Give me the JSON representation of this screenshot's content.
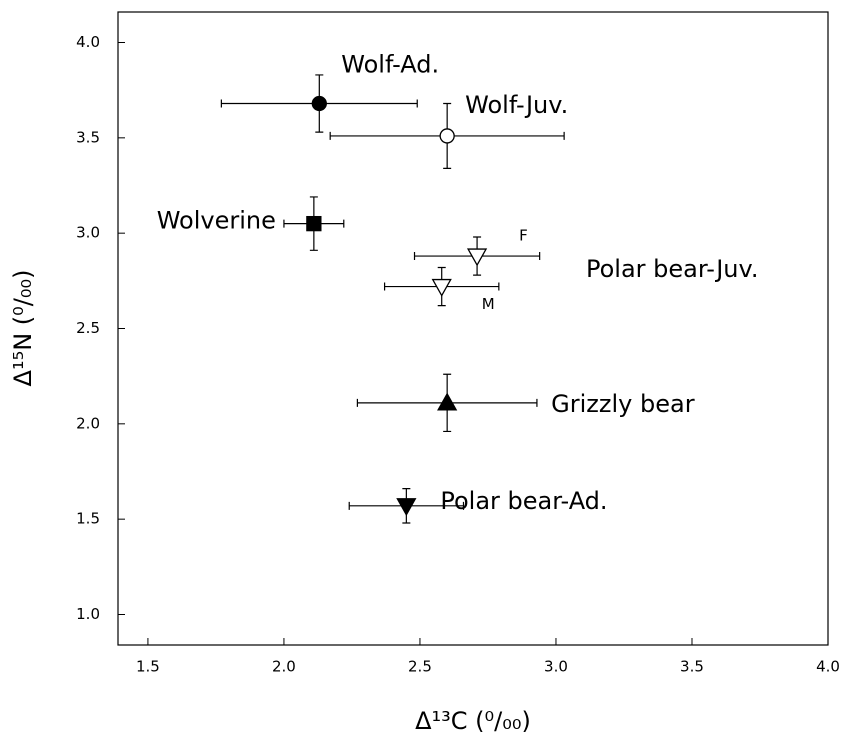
{
  "chart_data": {
    "type": "scatter",
    "xlabel": "Δ¹³C (⁰/₀₀)",
    "ylabel": "Δ¹⁵N (⁰/₀₀)",
    "xlim": [
      1.39,
      4.0
    ],
    "ylim": [
      0.84,
      4.16
    ],
    "xticks": [
      2.5,
      {
        "value": 1.5,
        "label": "1.5"
      },
      {
        "value": 2,
        "label": "2.0"
      },
      {
        "value": 3,
        "label": "3.0"
      },
      {
        "value": 3.5,
        "label": "3.5"
      },
      {
        "value": 4,
        "label": "4.0"
      }
    ],
    "yticks": [
      {
        "value": 1,
        "label": "1.0"
      },
      1.5,
      {
        "value": 2,
        "label": "2.0"
      },
      2.5,
      {
        "value": 3,
        "label": "3.0"
      },
      3.5,
      {
        "value": 4,
        "label": "4.0"
      }
    ],
    "color": "#000000",
    "series": [
      {
        "name": "Wolf-Ad.",
        "marker": "circle",
        "filled": true,
        "x": 2.13,
        "y": 3.68,
        "xerr": 0.36,
        "yerr": 0.15
      },
      {
        "name": "Wolf-Juv.",
        "marker": "circle",
        "filled": false,
        "x": 2.6,
        "y": 3.51,
        "xerr": 0.43,
        "yerr": 0.17
      },
      {
        "name": "Wolverine",
        "marker": "square",
        "filled": true,
        "x": 2.11,
        "y": 3.05,
        "xerr": 0.11,
        "yerr": 0.14
      },
      {
        "name": "F",
        "marker": "triangle-down",
        "filled": false,
        "x": 2.71,
        "y": 2.88,
        "xerr": 0.23,
        "yerr": 0.1
      },
      {
        "name": "M",
        "marker": "triangle-down",
        "filled": false,
        "x": 2.58,
        "y": 2.72,
        "xerr": 0.21,
        "yerr": 0.1
      },
      {
        "name": "Grizzly bear",
        "marker": "triangle-up",
        "filled": true,
        "x": 2.6,
        "y": 2.11,
        "xerr": 0.33,
        "yerr": 0.15
      },
      {
        "name": "Polar bear-Ad.",
        "marker": "triangle-down",
        "filled": true,
        "x": 2.45,
        "y": 1.57,
        "xerr": 0.21,
        "yerr": 0.09
      }
    ],
    "annotations": [
      "Polar bear-Juv."
    ]
  }
}
